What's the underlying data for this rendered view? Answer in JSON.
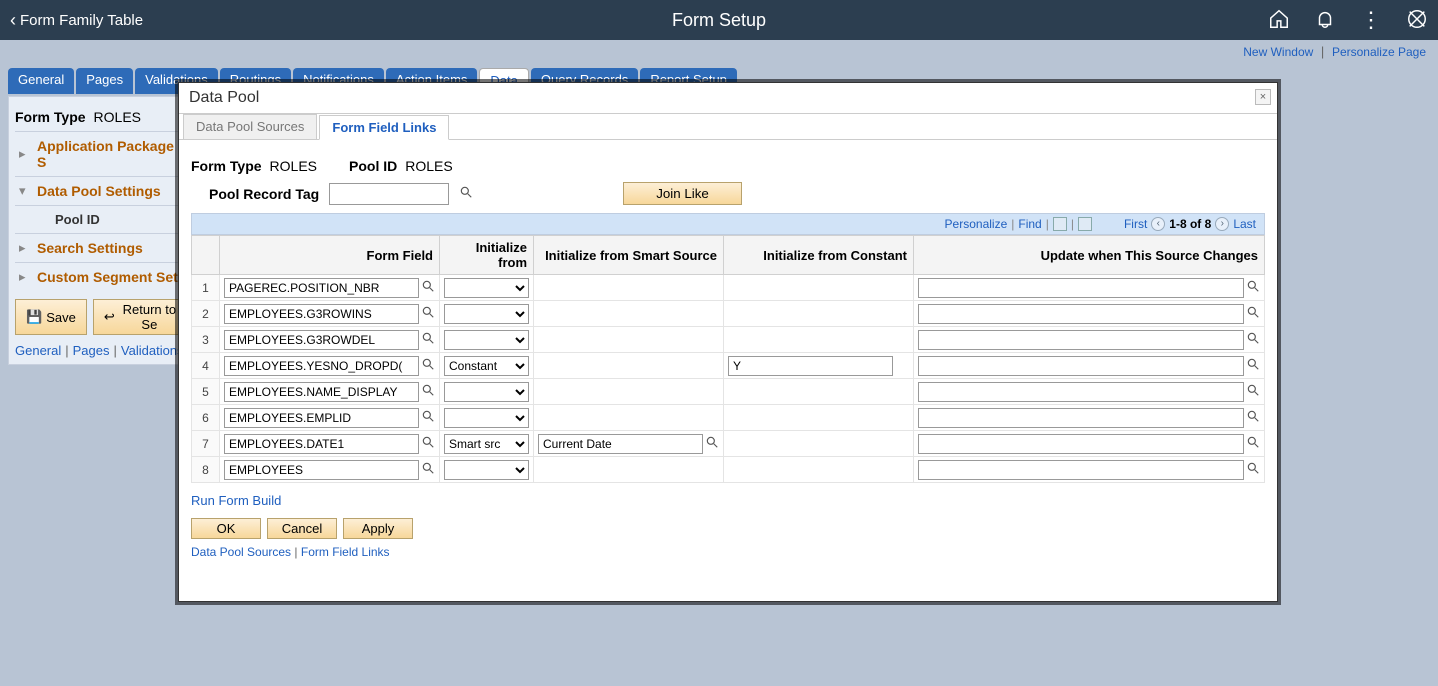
{
  "header": {
    "back_label": "Form Family Table",
    "title": "Form Setup"
  },
  "util_links": {
    "new_window": "New Window",
    "personalize_page": "Personalize Page"
  },
  "tabs": [
    "General",
    "Pages",
    "Validations",
    "Routings",
    "Notifications",
    "Action Items",
    "Data",
    "Query Records",
    "Report Setup"
  ],
  "active_tab_index": 6,
  "form_type_label": "Form Type",
  "form_type_value": "ROLES",
  "tree": {
    "app_pkg": "Application Package S",
    "data_pool": "Data Pool Settings",
    "pool_id": "Pool ID",
    "search": "Search Settings",
    "custom_segment": "Custom Segment Setti"
  },
  "buttons": {
    "save": "Save",
    "return": "Return to Se"
  },
  "bottom_linkbar": [
    "General",
    "Pages",
    "Validations"
  ],
  "modal": {
    "title": "Data Pool",
    "tabs": [
      "Data Pool Sources",
      "Form Field Links"
    ],
    "active_tab_index": 1,
    "form_type_label": "Form Type",
    "form_type_value": "ROLES",
    "pool_id_label": "Pool ID",
    "pool_id_value": "ROLES",
    "pool_record_tag_label": "Pool Record Tag",
    "pool_record_tag_value": "",
    "join_like_label": "Join Like",
    "grid": {
      "toolbar": {
        "personalize": "Personalize",
        "find": "Find",
        "first": "First",
        "range": "1-8 of 8",
        "last": "Last"
      },
      "columns": [
        "",
        "Form Field",
        "Initialize from",
        "Initialize from Smart Source",
        "Initialize from Constant",
        "Update when This Source Changes"
      ],
      "rows": [
        {
          "n": "1",
          "form_field": "PAGEREC.POSITION_NBR",
          "init_from": "",
          "smart_source": "",
          "constant": "",
          "update_when": ""
        },
        {
          "n": "2",
          "form_field": "EMPLOYEES.G3ROWINS",
          "init_from": "",
          "smart_source": "",
          "constant": "",
          "update_when": ""
        },
        {
          "n": "3",
          "form_field": "EMPLOYEES.G3ROWDEL",
          "init_from": "",
          "smart_source": "",
          "constant": "",
          "update_when": ""
        },
        {
          "n": "4",
          "form_field": "EMPLOYEES.YESNO_DROPD(",
          "init_from": "Constant",
          "smart_source": "",
          "constant": "Y",
          "update_when": ""
        },
        {
          "n": "5",
          "form_field": "EMPLOYEES.NAME_DISPLAY",
          "init_from": "",
          "smart_source": "",
          "constant": "",
          "update_when": ""
        },
        {
          "n": "6",
          "form_field": "EMPLOYEES.EMPLID",
          "init_from": "",
          "smart_source": "",
          "constant": "",
          "update_when": ""
        },
        {
          "n": "7",
          "form_field": "EMPLOYEES.DATE1",
          "init_from": "Smart src",
          "smart_source": "Current Date",
          "constant": "",
          "update_when": ""
        },
        {
          "n": "8",
          "form_field": "EMPLOYEES",
          "init_from": "",
          "smart_source": "",
          "constant": "",
          "update_when": ""
        }
      ]
    },
    "run_form_build": "Run Form Build",
    "ok": "OK",
    "cancel": "Cancel",
    "apply": "Apply",
    "bottom_links": [
      "Data Pool Sources",
      "Form Field Links"
    ]
  },
  "colors": {
    "header_bg": "#2c3e50",
    "link": "#1f5fbf",
    "tab_bg": "#2e6bb8",
    "tree_link": "#b05c00",
    "btn_grad_top": "#fdefd6",
    "btn_grad_bot": "#f7d79a",
    "grid_toolbar_bg": "#d1e3f7",
    "page_bg": "#b8c4d4"
  }
}
